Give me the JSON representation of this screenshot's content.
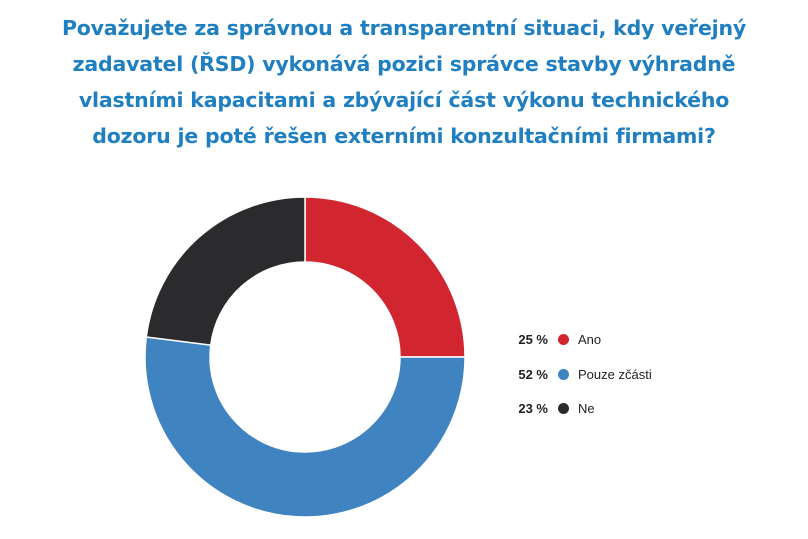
{
  "chart_data": {
    "type": "pie",
    "title_lines": [
      "Považujete za správnou a transparentní situaci, kdy veřejný",
      "zadavatel (ŘSD) vykonává pozici správce stavby výhradně",
      "vlastními kapacitami a zbývající část výkonu technického",
      "dozoru je poté řešen externími konzultačními firmami?"
    ],
    "categories": [
      "Ano",
      "Pouze zčásti",
      "Ne"
    ],
    "values": [
      25,
      52,
      23
    ],
    "value_labels": [
      "25 %",
      "52 %",
      "23 %"
    ],
    "colors": [
      "#d1252f",
      "#3f83c0",
      "#2b2b2d"
    ],
    "donut": true,
    "legend_position": "right"
  }
}
